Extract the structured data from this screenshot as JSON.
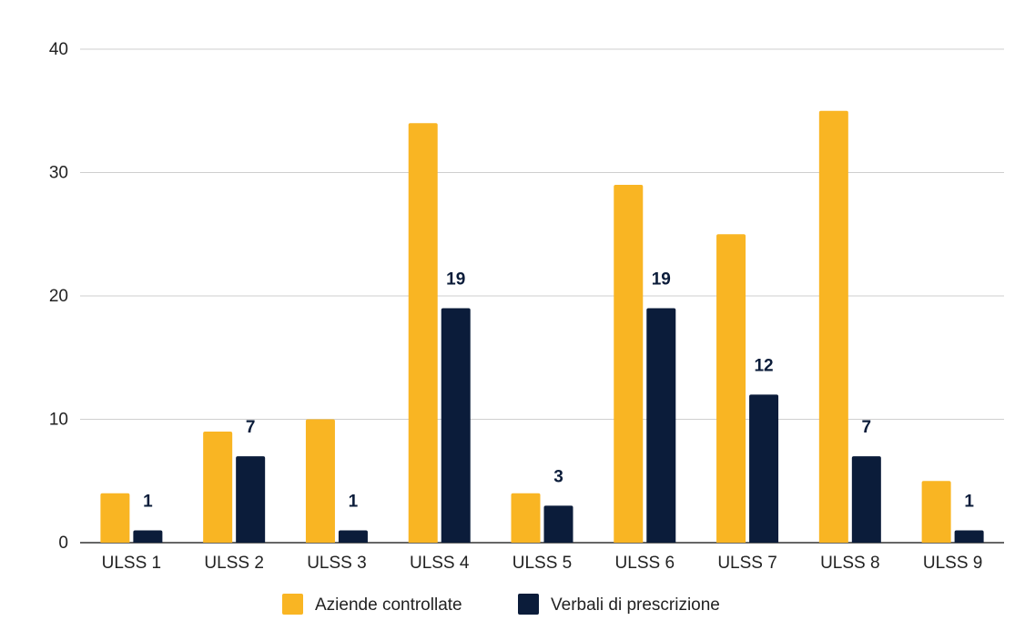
{
  "chart_data": {
    "type": "bar",
    "title": "",
    "xlabel": "",
    "ylabel": "",
    "ylim": [
      0,
      40
    ],
    "yticks": [
      0,
      10,
      20,
      30,
      40
    ],
    "grid": true,
    "legend_position": "bottom",
    "categories": [
      "ULSS 1",
      "ULSS 2",
      "ULSS 3",
      "ULSS 4",
      "ULSS 5",
      "ULSS 6",
      "ULSS 7",
      "ULSS 8",
      "ULSS 9"
    ],
    "series": [
      {
        "name": "Aziende controllate",
        "color": "#f9b523",
        "values": [
          4,
          9,
          10,
          34,
          4,
          29,
          25,
          35,
          5
        ],
        "show_data_labels": false
      },
      {
        "name": "Verbali di prescrizione",
        "color": "#0b1c3a",
        "values": [
          1,
          7,
          1,
          19,
          3,
          19,
          12,
          7,
          1
        ],
        "show_data_labels": true
      }
    ]
  }
}
